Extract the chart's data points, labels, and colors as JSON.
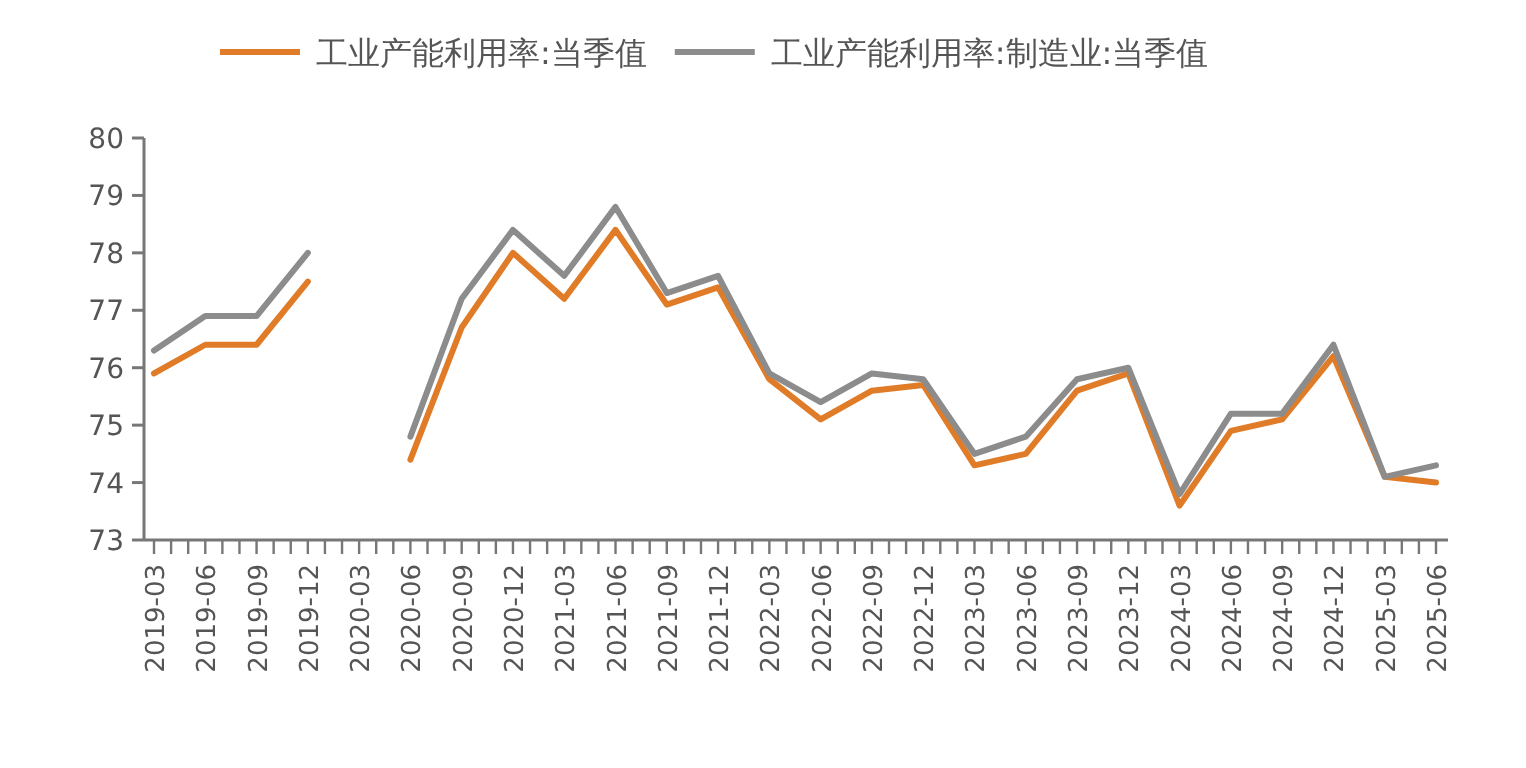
{
  "chart_data": {
    "type": "line",
    "legend": "top",
    "marker": "none",
    "grid": false,
    "ylim": [
      73,
      80
    ],
    "yticks": [
      73,
      74,
      75,
      76,
      77,
      78,
      79,
      80
    ],
    "categories": [
      "2019-03",
      "2019-06",
      "2019-09",
      "2019-12",
      "2020-03",
      "2020-06",
      "2020-09",
      "2020-12",
      "2021-03",
      "2021-06",
      "2021-09",
      "2021-12",
      "2022-03",
      "2022-06",
      "2022-09",
      "2022-12",
      "2023-03",
      "2023-06",
      "2023-09",
      "2023-12",
      "2024-03",
      "2024-06",
      "2024-09",
      "2024-12",
      "2025-03",
      "2025-06"
    ],
    "series": [
      {
        "name": "工业产能利用率:当季值",
        "color": "#e07b28",
        "values": [
          75.9,
          76.4,
          76.4,
          77.5,
          null,
          74.4,
          76.7,
          78.0,
          77.2,
          78.4,
          77.1,
          77.4,
          75.8,
          75.1,
          75.6,
          75.7,
          74.3,
          74.5,
          75.6,
          75.9,
          73.6,
          74.9,
          75.1,
          76.2,
          74.1,
          74.0
        ]
      },
      {
        "name": "工业产能利用率:制造业:当季值",
        "color": "#8c8c8c",
        "values": [
          76.3,
          76.9,
          76.9,
          78.0,
          null,
          74.8,
          77.2,
          78.4,
          77.6,
          78.8,
          77.3,
          77.6,
          75.9,
          75.4,
          75.9,
          75.8,
          74.5,
          74.8,
          75.8,
          76.0,
          73.8,
          75.2,
          75.2,
          76.4,
          74.1,
          74.3
        ]
      }
    ]
  }
}
